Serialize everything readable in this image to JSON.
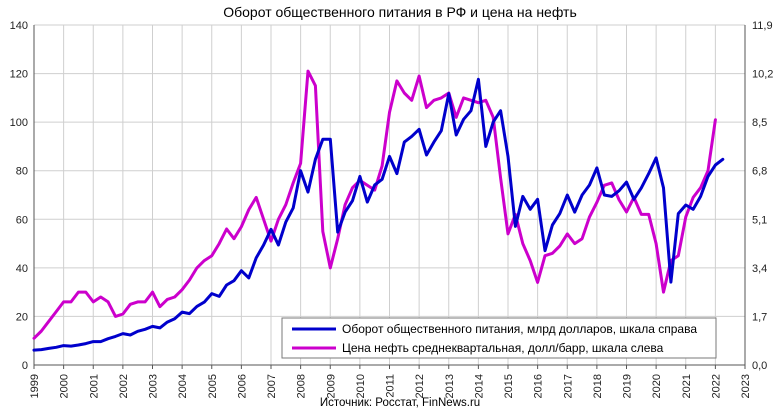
{
  "chart_data": {
    "type": "line",
    "title": "Оборот общественного питания в РФ и цена на нефть",
    "source": "Источник: Росстат, FinNews.ru",
    "grid": true,
    "legend_position": "bottom-right",
    "x_ticks": [
      "1999",
      "2000",
      "2001",
      "2002",
      "2003",
      "2004",
      "2005",
      "2006",
      "2007",
      "2008",
      "2009",
      "2010",
      "2011",
      "2012",
      "2013",
      "2014",
      "2015",
      "2016",
      "2017",
      "2018",
      "2019",
      "2020",
      "2021",
      "2022",
      "2023"
    ],
    "xlim": [
      1999,
      2023
    ],
    "y_left": {
      "min": 0,
      "max": 140,
      "ticks": [
        "0",
        "20",
        "40",
        "60",
        "80",
        "100",
        "120",
        "140"
      ]
    },
    "y_right": {
      "min": 0,
      "max": 11.9,
      "ticks": [
        "0,0",
        "1,7",
        "3,4",
        "5,1",
        "6,8",
        "8,5",
        "10,2",
        "11,9"
      ]
    },
    "series": [
      {
        "name": "Оборот общественного питания, млрд долларов, шкала справа",
        "axis": "right",
        "color": "#0000cc",
        "points": [
          [
            1999.0,
            0.52
          ],
          [
            1999.25,
            0.54
          ],
          [
            1999.5,
            0.58
          ],
          [
            1999.75,
            0.62
          ],
          [
            2000.0,
            0.68
          ],
          [
            2000.25,
            0.66
          ],
          [
            2000.5,
            0.7
          ],
          [
            2000.75,
            0.75
          ],
          [
            2001.0,
            0.82
          ],
          [
            2001.25,
            0.82
          ],
          [
            2001.5,
            0.92
          ],
          [
            2001.75,
            1.0
          ],
          [
            2002.0,
            1.1
          ],
          [
            2002.25,
            1.05
          ],
          [
            2002.5,
            1.18
          ],
          [
            2002.75,
            1.25
          ],
          [
            2003.0,
            1.35
          ],
          [
            2003.25,
            1.3
          ],
          [
            2003.5,
            1.5
          ],
          [
            2003.75,
            1.62
          ],
          [
            2004.0,
            1.85
          ],
          [
            2004.25,
            1.8
          ],
          [
            2004.5,
            2.05
          ],
          [
            2004.75,
            2.2
          ],
          [
            2005.0,
            2.5
          ],
          [
            2005.25,
            2.4
          ],
          [
            2005.5,
            2.8
          ],
          [
            2005.75,
            2.95
          ],
          [
            2006.0,
            3.3
          ],
          [
            2006.25,
            3.05
          ],
          [
            2006.5,
            3.75
          ],
          [
            2006.75,
            4.2
          ],
          [
            2007.0,
            4.75
          ],
          [
            2007.25,
            4.2
          ],
          [
            2007.5,
            5.0
          ],
          [
            2007.75,
            5.5
          ],
          [
            2008.0,
            6.8
          ],
          [
            2008.25,
            6.05
          ],
          [
            2008.5,
            7.2
          ],
          [
            2008.75,
            7.9
          ],
          [
            2009.0,
            7.9
          ],
          [
            2009.25,
            4.65
          ],
          [
            2009.5,
            5.35
          ],
          [
            2009.75,
            5.75
          ],
          [
            2010.0,
            6.6
          ],
          [
            2010.25,
            5.7
          ],
          [
            2010.5,
            6.3
          ],
          [
            2010.75,
            6.5
          ],
          [
            2011.0,
            7.3
          ],
          [
            2011.25,
            6.7
          ],
          [
            2011.5,
            7.8
          ],
          [
            2011.75,
            8.0
          ],
          [
            2012.0,
            8.25
          ],
          [
            2012.25,
            7.35
          ],
          [
            2012.5,
            7.8
          ],
          [
            2012.75,
            8.2
          ],
          [
            2013.0,
            9.5
          ],
          [
            2013.25,
            8.05
          ],
          [
            2013.5,
            8.6
          ],
          [
            2013.75,
            8.9
          ],
          [
            2014.0,
            10.0
          ],
          [
            2014.25,
            7.65
          ],
          [
            2014.5,
            8.5
          ],
          [
            2014.75,
            8.9
          ],
          [
            2015.0,
            7.3
          ],
          [
            2015.25,
            4.85
          ],
          [
            2015.5,
            5.9
          ],
          [
            2015.75,
            5.45
          ],
          [
            2016.0,
            5.8
          ],
          [
            2016.25,
            4.0
          ],
          [
            2016.5,
            4.9
          ],
          [
            2016.75,
            5.3
          ],
          [
            2017.0,
            5.95
          ],
          [
            2017.25,
            5.35
          ],
          [
            2017.5,
            5.95
          ],
          [
            2017.75,
            6.3
          ],
          [
            2018.0,
            6.9
          ],
          [
            2018.25,
            5.95
          ],
          [
            2018.5,
            5.9
          ],
          [
            2018.75,
            6.1
          ],
          [
            2019.0,
            6.4
          ],
          [
            2019.25,
            5.8
          ],
          [
            2019.5,
            6.2
          ],
          [
            2019.75,
            6.7
          ],
          [
            2020.0,
            7.25
          ],
          [
            2020.25,
            6.2
          ],
          [
            2020.5,
            2.9
          ],
          [
            2020.75,
            5.3
          ],
          [
            2021.0,
            5.6
          ],
          [
            2021.25,
            5.45
          ],
          [
            2021.5,
            5.9
          ],
          [
            2021.75,
            6.6
          ],
          [
            2022.0,
            7.0
          ],
          [
            2022.25,
            7.2
          ]
        ]
      },
      {
        "name": "Цена нефть среднеквартальная, долл/барр, шкала слева",
        "axis": "left",
        "color": "#cc00cc",
        "points": [
          [
            1999.0,
            11
          ],
          [
            1999.25,
            14
          ],
          [
            1999.5,
            18
          ],
          [
            1999.75,
            22
          ],
          [
            2000.0,
            26
          ],
          [
            2000.25,
            26
          ],
          [
            2000.5,
            30
          ],
          [
            2000.75,
            30
          ],
          [
            2001.0,
            26
          ],
          [
            2001.25,
            28
          ],
          [
            2001.5,
            26
          ],
          [
            2001.75,
            20
          ],
          [
            2002.0,
            21
          ],
          [
            2002.25,
            25
          ],
          [
            2002.5,
            26
          ],
          [
            2002.75,
            26
          ],
          [
            2003.0,
            30
          ],
          [
            2003.25,
            24
          ],
          [
            2003.5,
            27
          ],
          [
            2003.75,
            28
          ],
          [
            2004.0,
            31
          ],
          [
            2004.25,
            35
          ],
          [
            2004.5,
            40
          ],
          [
            2004.75,
            43
          ],
          [
            2005.0,
            45
          ],
          [
            2005.25,
            50
          ],
          [
            2005.5,
            56
          ],
          [
            2005.75,
            52
          ],
          [
            2006.0,
            57
          ],
          [
            2006.25,
            64
          ],
          [
            2006.5,
            69
          ],
          [
            2006.75,
            60
          ],
          [
            2007.0,
            51
          ],
          [
            2007.25,
            60
          ],
          [
            2007.5,
            66
          ],
          [
            2007.75,
            75
          ],
          [
            2008.0,
            83
          ],
          [
            2008.25,
            121
          ],
          [
            2008.5,
            115
          ],
          [
            2008.75,
            55
          ],
          [
            2009.0,
            40
          ],
          [
            2009.25,
            52
          ],
          [
            2009.5,
            66
          ],
          [
            2009.75,
            73
          ],
          [
            2010.0,
            76
          ],
          [
            2010.25,
            74
          ],
          [
            2010.5,
            72
          ],
          [
            2010.75,
            82
          ],
          [
            2011.0,
            104
          ],
          [
            2011.25,
            117
          ],
          [
            2011.5,
            112
          ],
          [
            2011.75,
            109
          ],
          [
            2012.0,
            119
          ],
          [
            2012.25,
            106
          ],
          [
            2012.5,
            109
          ],
          [
            2012.75,
            110
          ],
          [
            2013.0,
            112
          ],
          [
            2013.25,
            102
          ],
          [
            2013.5,
            110
          ],
          [
            2013.75,
            109
          ],
          [
            2014.0,
            108
          ],
          [
            2014.25,
            109
          ],
          [
            2014.5,
            102
          ],
          [
            2014.75,
            77
          ],
          [
            2015.0,
            54
          ],
          [
            2015.25,
            62
          ],
          [
            2015.5,
            50
          ],
          [
            2015.75,
            43
          ],
          [
            2016.0,
            34
          ],
          [
            2016.25,
            45
          ],
          [
            2016.5,
            46
          ],
          [
            2016.75,
            49
          ],
          [
            2017.0,
            54
          ],
          [
            2017.25,
            50
          ],
          [
            2017.5,
            52
          ],
          [
            2017.75,
            61
          ],
          [
            2018.0,
            67
          ],
          [
            2018.25,
            74
          ],
          [
            2018.5,
            75
          ],
          [
            2018.75,
            68
          ],
          [
            2019.0,
            63
          ],
          [
            2019.25,
            69
          ],
          [
            2019.5,
            62
          ],
          [
            2019.75,
            62
          ],
          [
            2020.0,
            50
          ],
          [
            2020.25,
            30
          ],
          [
            2020.5,
            43
          ],
          [
            2020.75,
            45
          ],
          [
            2021.0,
            61
          ],
          [
            2021.25,
            69
          ],
          [
            2021.5,
            73
          ],
          [
            2021.75,
            80
          ],
          [
            2022.0,
            101
          ]
        ]
      }
    ]
  }
}
